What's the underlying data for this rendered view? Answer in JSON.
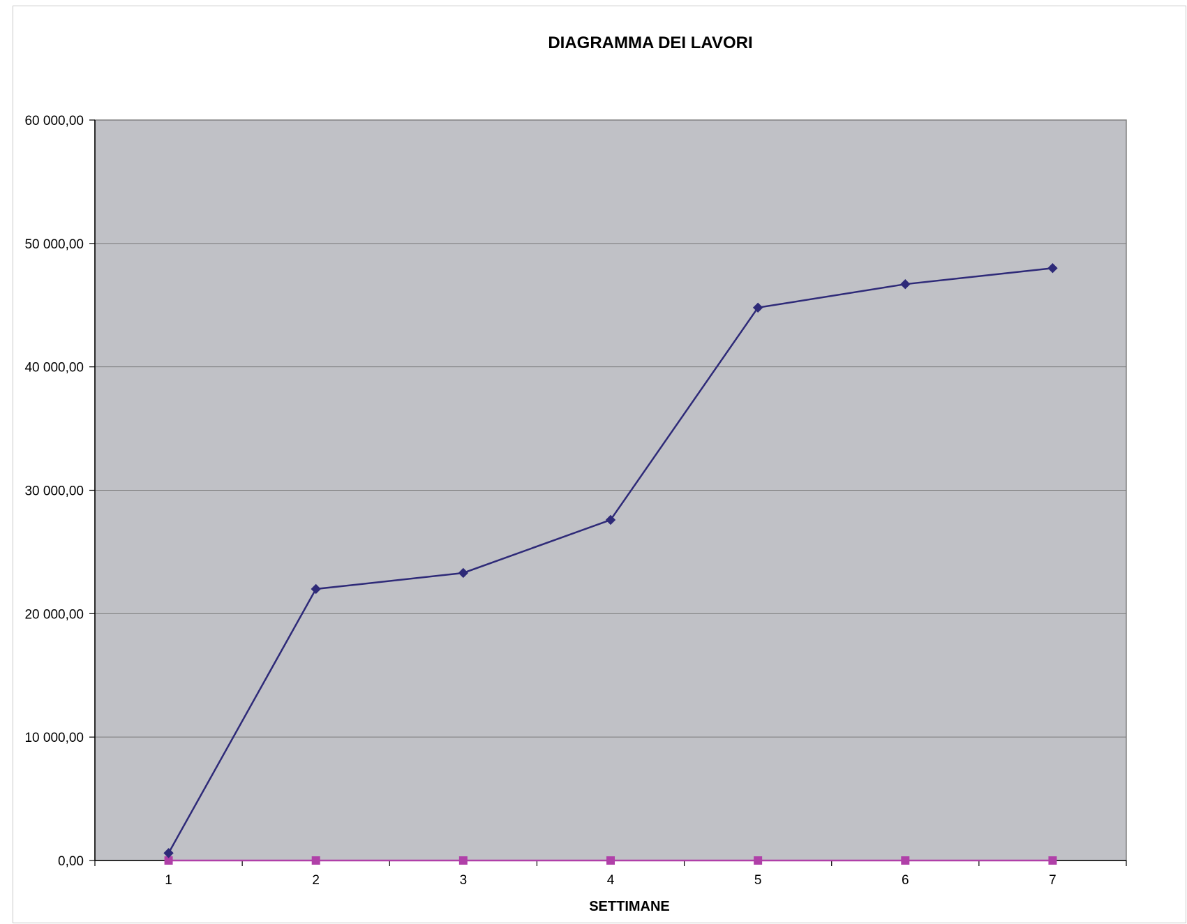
{
  "chart_data": {
    "type": "line",
    "title": "DIAGRAMMA DEI LAVORI",
    "xlabel": "SETTIMANE",
    "ylabel": "",
    "categories": [
      "1",
      "2",
      "3",
      "4",
      "5",
      "6",
      "7"
    ],
    "yticks": [
      "0,00",
      "10 000,00",
      "20 000,00",
      "30 000,00",
      "40 000,00",
      "50 000,00",
      "60 000,00"
    ],
    "ylim": [
      0,
      60000
    ],
    "grid": true,
    "series": [
      {
        "values": [
          600,
          22000,
          23300,
          27600,
          44800,
          46700,
          48000
        ],
        "color": "#2e2a78",
        "marker": "diamond"
      },
      {
        "values": [
          0,
          0,
          0,
          0,
          0,
          0,
          0
        ],
        "color": "#b040a8",
        "marker": "square"
      }
    ],
    "plot_background": "#c0c1c6"
  }
}
